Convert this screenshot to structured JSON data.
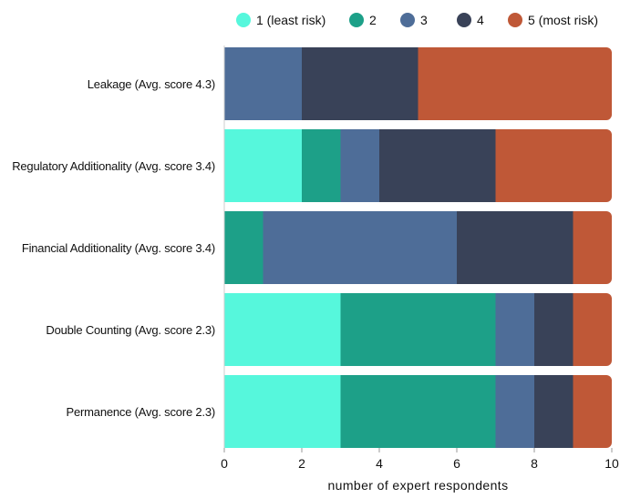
{
  "chart_data": {
    "type": "bar",
    "orientation": "horizontal",
    "stacked": true,
    "categories": [
      "Leakage (Avg. score 4.3)",
      "Regulatory Additionality (Avg. score 3.4)",
      "Financial Additionality (Avg. score 3.4)",
      "Double Counting (Avg. score 2.3)",
      "Permanence (Avg. score 2.3)"
    ],
    "series": [
      {
        "name": "1 (least risk)",
        "color": "#56f7dc",
        "values": [
          0,
          2,
          0,
          3,
          3
        ]
      },
      {
        "name": "2",
        "color": "#1da088",
        "values": [
          0,
          1,
          1,
          4,
          4
        ]
      },
      {
        "name": "3",
        "color": "#4e6d98",
        "values": [
          2,
          1,
          5,
          1,
          1
        ]
      },
      {
        "name": "4",
        "color": "#394258",
        "values": [
          3,
          3,
          3,
          1,
          1
        ]
      },
      {
        "name": "5 (most risk)",
        "color": "#bf5837",
        "values": [
          5,
          3,
          1,
          1,
          1
        ]
      }
    ],
    "xlabel": "number of expert respondents",
    "ylabel": "",
    "xlim": [
      0,
      10
    ],
    "xticks": [
      "0",
      "2",
      "4",
      "6",
      "8",
      "10"
    ],
    "legend_position": "top",
    "grid": false
  }
}
